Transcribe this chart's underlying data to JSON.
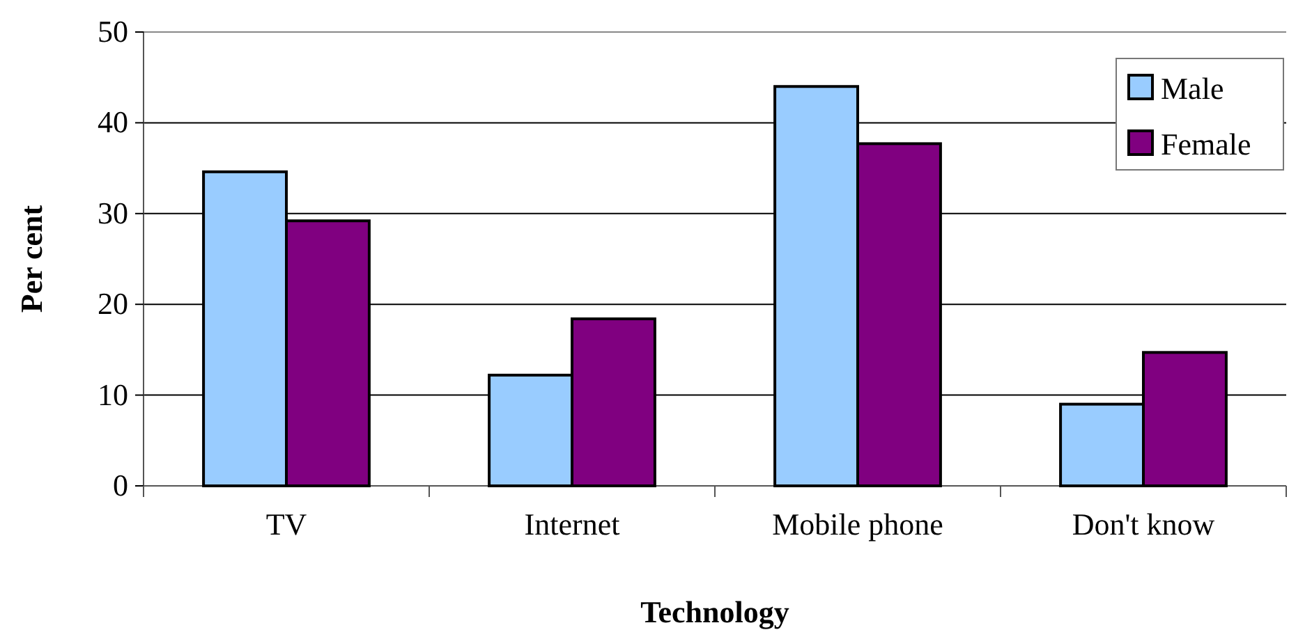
{
  "chart_data": {
    "type": "bar",
    "xlabel": "Technology",
    "ylabel": "Per cent",
    "categories": [
      "TV",
      "Internet",
      "Mobile phone",
      "Don't know"
    ],
    "series": [
      {
        "name": "Male",
        "color": "#99ccff",
        "values": [
          34.6,
          12.2,
          44.0,
          9.0
        ]
      },
      {
        "name": "Female",
        "color": "#800080",
        "values": [
          29.2,
          18.4,
          37.7,
          14.7
        ]
      }
    ],
    "ylim": [
      0,
      50
    ],
    "yticks": [
      0,
      10,
      20,
      30,
      40,
      50
    ],
    "grid": "y",
    "legend": "top right"
  }
}
